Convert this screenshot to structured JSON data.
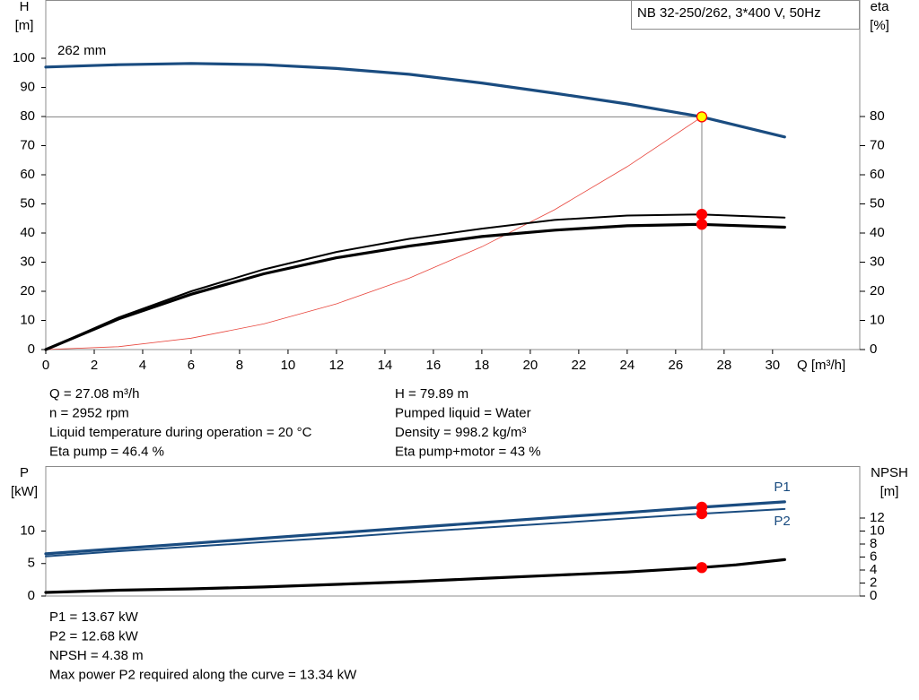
{
  "chart_data": [
    {
      "type": "line",
      "title": "NB 32-250/262, 3*400 V, 50Hz",
      "annotation": "262 mm",
      "y_label": [
        "H",
        "[m]"
      ],
      "y2_label": [
        "eta",
        "[%]"
      ],
      "x_label": "Q [m³/h]",
      "xlim": [
        0,
        33.6
      ],
      "xticks": [
        0,
        2,
        4,
        6,
        8,
        10,
        12,
        14,
        16,
        18,
        20,
        22,
        24,
        26,
        28,
        30
      ],
      "ylim": [
        0,
        120
      ],
      "yticks": [
        0,
        10,
        20,
        30,
        40,
        50,
        60,
        70,
        80,
        90,
        100
      ],
      "y2lim": [
        0,
        120
      ],
      "y2ticks": [
        0,
        10,
        20,
        30,
        40,
        50,
        60,
        70,
        80
      ],
      "guides": true,
      "series": [
        {
          "color": "#e8453c",
          "line": "hair",
          "x": [
            0,
            3,
            6,
            9,
            12,
            15,
            18,
            21,
            24,
            27.08
          ],
          "values": [
            0,
            1.0,
            3.9,
            8.8,
            15.7,
            24.5,
            35.3,
            48.0,
            62.8,
            79.89
          ]
        },
        {
          "color": "#000000",
          "line": "thick",
          "axis": "y2",
          "x": [
            0,
            3,
            6,
            9,
            12,
            15,
            18,
            21,
            24,
            27,
            30.5
          ],
          "values": [
            0,
            11,
            20,
            27.5,
            33.5,
            38,
            41.5,
            44.5,
            46,
            46.4,
            45.3
          ]
        },
        {
          "color": "#000000",
          "line": "thicker",
          "axis": "y2",
          "x": [
            0,
            3,
            6,
            9,
            12,
            15,
            18,
            21,
            24,
            27,
            30.5
          ],
          "values": [
            0,
            10.5,
            19,
            26,
            31.5,
            35.5,
            38.8,
            41,
            42.5,
            43,
            42
          ]
        },
        {
          "color": "#1a4c80",
          "line": "thicker",
          "x": [
            0,
            3,
            6,
            9,
            12,
            15,
            18,
            21,
            24,
            27,
            30.5
          ],
          "values": [
            97,
            97.8,
            98.2,
            97.8,
            96.5,
            94.5,
            91.5,
            88,
            84.3,
            80,
            73
          ]
        }
      ],
      "points": [
        {
          "x": 27.08,
          "y": 79.89,
          "color": "#ffff00"
        },
        {
          "x": 27.08,
          "y": 46.4,
          "color": "#ff0000",
          "axis": "y2"
        },
        {
          "x": 27.08,
          "y": 43,
          "color": "#ff0000",
          "axis": "y2"
        }
      ]
    },
    {
      "type": "line",
      "y_label": [
        "P",
        "[kW]"
      ],
      "y2_label": [
        "NPSH",
        "[m]"
      ],
      "xlim": [
        0,
        33.6
      ],
      "ylim": [
        0,
        20
      ],
      "yticks": [
        0,
        5,
        10
      ],
      "y2lim": [
        0,
        20
      ],
      "y2ticks": [
        0,
        2,
        4,
        6,
        8,
        10,
        12
      ],
      "series": [
        {
          "name": "P1",
          "color": "#1a4c80",
          "line": "thicker",
          "x": [
            0,
            3,
            6,
            9,
            12,
            15,
            18,
            21,
            24,
            27,
            30.5
          ],
          "values": [
            6.5,
            7.3,
            8.1,
            8.9,
            9.7,
            10.5,
            11.3,
            12.1,
            12.86,
            13.65,
            14.5
          ]
        },
        {
          "name": "P2",
          "color": "#1a4c80",
          "line": "thick",
          "x": [
            0,
            3,
            6,
            9,
            12,
            15,
            18,
            21,
            24,
            27,
            30.5
          ],
          "values": [
            6.1,
            6.9,
            7.6,
            8.3,
            9.0,
            9.8,
            10.5,
            11.2,
            11.95,
            12.66,
            13.4
          ]
        },
        {
          "color": "#000000",
          "line": "thicker",
          "axis": "y2",
          "x": [
            0,
            3,
            6,
            9,
            12,
            15,
            18,
            21,
            24,
            27,
            28.5,
            30.5
          ],
          "values": [
            0.55,
            0.9,
            1.1,
            1.4,
            1.8,
            2.2,
            2.7,
            3.2,
            3.7,
            4.37,
            4.8,
            5.6
          ]
        }
      ],
      "points": [
        {
          "x": 27.08,
          "y": 13.67,
          "color": "#ff0000"
        },
        {
          "x": 27.08,
          "y": 12.68,
          "color": "#ff0000"
        },
        {
          "x": 27.08,
          "y": 4.38,
          "color": "#ff0000",
          "axis": "y2"
        }
      ]
    }
  ],
  "operating_info": {
    "left": [
      "Q = 27.08 m³/h",
      "n = 2952 rpm",
      "Liquid temperature during operation = 20 °C",
      "Eta pump = 46.4 %"
    ],
    "right": [
      "H = 79.89 m",
      "Pumped liquid = Water",
      "Density = 998.2 kg/m³",
      "Eta pump+motor = 43 %"
    ]
  },
  "power_info": [
    "P1 = 13.67 kW",
    "P2 = 12.68 kW",
    "NPSH = 4.38 m",
    "Max power P2 required along the curve = 13.34 kW"
  ]
}
